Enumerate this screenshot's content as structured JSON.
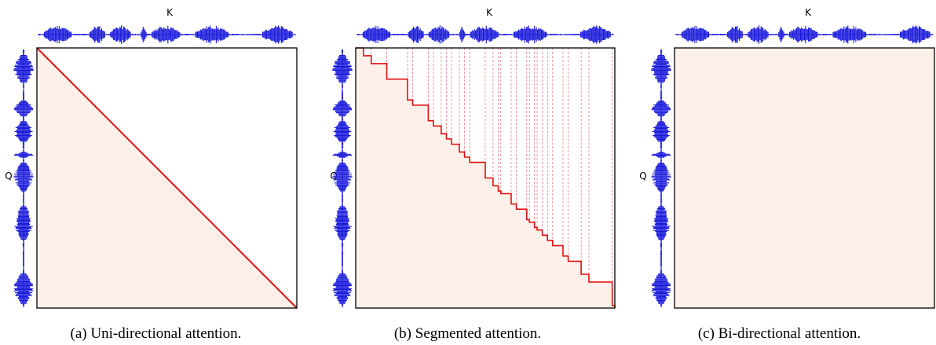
{
  "colors": {
    "waveform": "#1a1adb",
    "boundary": "#e01010",
    "matrix_fill": "#fdf0ea",
    "frame": "#000000"
  },
  "panels": [
    {
      "id": "a",
      "caption": "(a)  Uni-directional attention.",
      "k_label": "K",
      "q_label": "Q",
      "mask": "uni"
    },
    {
      "id": "b",
      "caption": "(b)  Segmented attention.",
      "k_label": "K",
      "q_label": "Q",
      "mask": "segmented"
    },
    {
      "id": "c",
      "caption": "(c)  Bi-directional attention.",
      "k_label": "K",
      "q_label": "Q",
      "mask": "bi"
    }
  ]
}
